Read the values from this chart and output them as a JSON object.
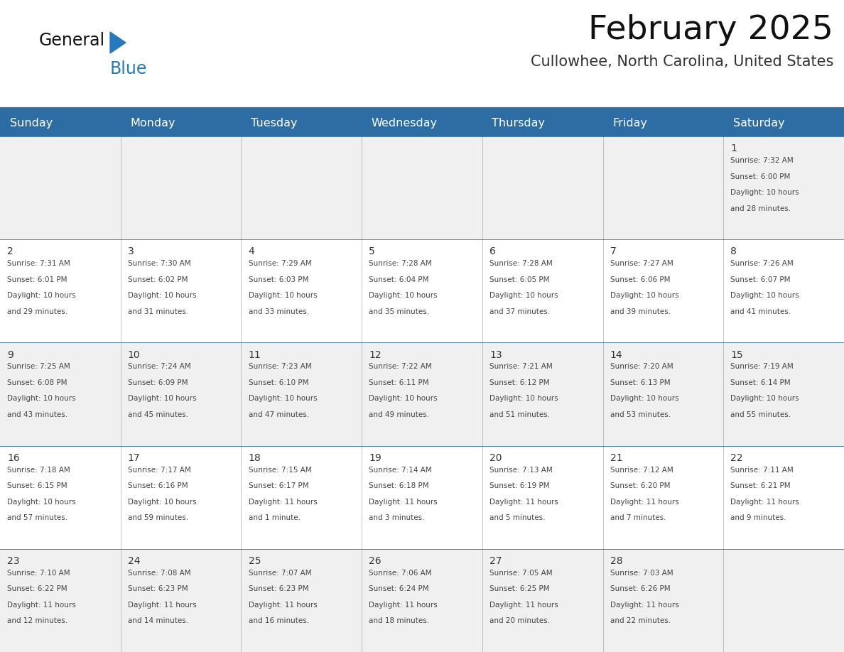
{
  "title": "February 2025",
  "subtitle": "Cullowhee, North Carolina, United States",
  "header_bg": "#2E6DA4",
  "header_text": "#FFFFFF",
  "day_names": [
    "Sunday",
    "Monday",
    "Tuesday",
    "Wednesday",
    "Thursday",
    "Friday",
    "Saturday"
  ],
  "cell_bg_odd": "#F0F0F0",
  "cell_bg_even": "#FFFFFF",
  "border_color": "#2E6DA4",
  "text_color": "#444444",
  "day_num_color": "#333333",
  "title_color": "#111111",
  "subtitle_color": "#333333",
  "logo_general_color": "#111111",
  "logo_blue_color": "#2779BD",
  "weeks": [
    [
      null,
      null,
      null,
      null,
      null,
      null,
      1
    ],
    [
      2,
      3,
      4,
      5,
      6,
      7,
      8
    ],
    [
      9,
      10,
      11,
      12,
      13,
      14,
      15
    ],
    [
      16,
      17,
      18,
      19,
      20,
      21,
      22
    ],
    [
      23,
      24,
      25,
      26,
      27,
      28,
      null
    ]
  ],
  "cell_data": {
    "1": [
      "Sunrise: 7:32 AM",
      "Sunset: 6:00 PM",
      "Daylight: 10 hours",
      "and 28 minutes."
    ],
    "2": [
      "Sunrise: 7:31 AM",
      "Sunset: 6:01 PM",
      "Daylight: 10 hours",
      "and 29 minutes."
    ],
    "3": [
      "Sunrise: 7:30 AM",
      "Sunset: 6:02 PM",
      "Daylight: 10 hours",
      "and 31 minutes."
    ],
    "4": [
      "Sunrise: 7:29 AM",
      "Sunset: 6:03 PM",
      "Daylight: 10 hours",
      "and 33 minutes."
    ],
    "5": [
      "Sunrise: 7:28 AM",
      "Sunset: 6:04 PM",
      "Daylight: 10 hours",
      "and 35 minutes."
    ],
    "6": [
      "Sunrise: 7:28 AM",
      "Sunset: 6:05 PM",
      "Daylight: 10 hours",
      "and 37 minutes."
    ],
    "7": [
      "Sunrise: 7:27 AM",
      "Sunset: 6:06 PM",
      "Daylight: 10 hours",
      "and 39 minutes."
    ],
    "8": [
      "Sunrise: 7:26 AM",
      "Sunset: 6:07 PM",
      "Daylight: 10 hours",
      "and 41 minutes."
    ],
    "9": [
      "Sunrise: 7:25 AM",
      "Sunset: 6:08 PM",
      "Daylight: 10 hours",
      "and 43 minutes."
    ],
    "10": [
      "Sunrise: 7:24 AM",
      "Sunset: 6:09 PM",
      "Daylight: 10 hours",
      "and 45 minutes."
    ],
    "11": [
      "Sunrise: 7:23 AM",
      "Sunset: 6:10 PM",
      "Daylight: 10 hours",
      "and 47 minutes."
    ],
    "12": [
      "Sunrise: 7:22 AM",
      "Sunset: 6:11 PM",
      "Daylight: 10 hours",
      "and 49 minutes."
    ],
    "13": [
      "Sunrise: 7:21 AM",
      "Sunset: 6:12 PM",
      "Daylight: 10 hours",
      "and 51 minutes."
    ],
    "14": [
      "Sunrise: 7:20 AM",
      "Sunset: 6:13 PM",
      "Daylight: 10 hours",
      "and 53 minutes."
    ],
    "15": [
      "Sunrise: 7:19 AM",
      "Sunset: 6:14 PM",
      "Daylight: 10 hours",
      "and 55 minutes."
    ],
    "16": [
      "Sunrise: 7:18 AM",
      "Sunset: 6:15 PM",
      "Daylight: 10 hours",
      "and 57 minutes."
    ],
    "17": [
      "Sunrise: 7:17 AM",
      "Sunset: 6:16 PM",
      "Daylight: 10 hours",
      "and 59 minutes."
    ],
    "18": [
      "Sunrise: 7:15 AM",
      "Sunset: 6:17 PM",
      "Daylight: 11 hours",
      "and 1 minute."
    ],
    "19": [
      "Sunrise: 7:14 AM",
      "Sunset: 6:18 PM",
      "Daylight: 11 hours",
      "and 3 minutes."
    ],
    "20": [
      "Sunrise: 7:13 AM",
      "Sunset: 6:19 PM",
      "Daylight: 11 hours",
      "and 5 minutes."
    ],
    "21": [
      "Sunrise: 7:12 AM",
      "Sunset: 6:20 PM",
      "Daylight: 11 hours",
      "and 7 minutes."
    ],
    "22": [
      "Sunrise: 7:11 AM",
      "Sunset: 6:21 PM",
      "Daylight: 11 hours",
      "and 9 minutes."
    ],
    "23": [
      "Sunrise: 7:10 AM",
      "Sunset: 6:22 PM",
      "Daylight: 11 hours",
      "and 12 minutes."
    ],
    "24": [
      "Sunrise: 7:08 AM",
      "Sunset: 6:23 PM",
      "Daylight: 11 hours",
      "and 14 minutes."
    ],
    "25": [
      "Sunrise: 7:07 AM",
      "Sunset: 6:23 PM",
      "Daylight: 11 hours",
      "and 16 minutes."
    ],
    "26": [
      "Sunrise: 7:06 AM",
      "Sunset: 6:24 PM",
      "Daylight: 11 hours",
      "and 18 minutes."
    ],
    "27": [
      "Sunrise: 7:05 AM",
      "Sunset: 6:25 PM",
      "Daylight: 11 hours",
      "and 20 minutes."
    ],
    "28": [
      "Sunrise: 7:03 AM",
      "Sunset: 6:26 PM",
      "Daylight: 11 hours",
      "and 22 minutes."
    ]
  }
}
